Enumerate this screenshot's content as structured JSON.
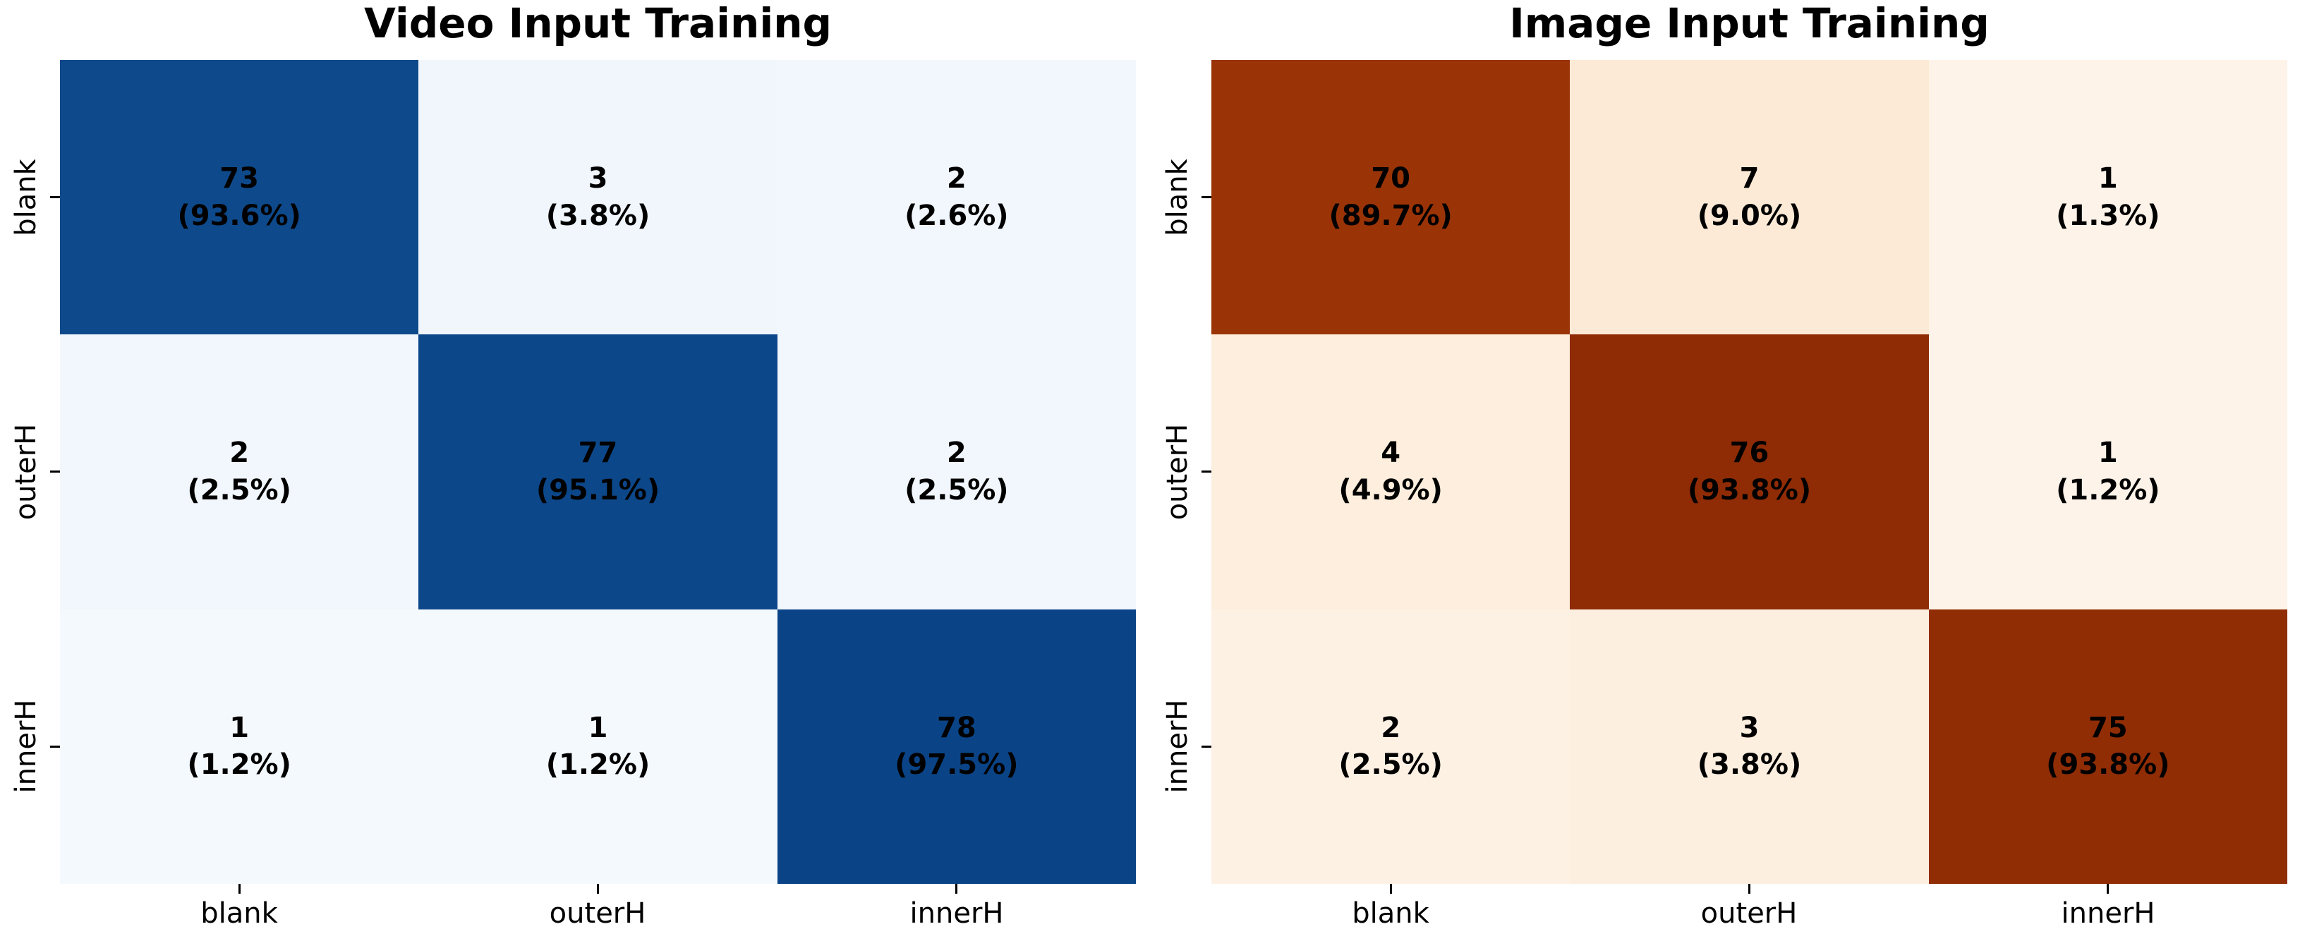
{
  "figure": {
    "background": "#ffffff",
    "text_color": "#000000"
  },
  "panels": [
    {
      "id": "video",
      "title": "Video Input Training",
      "colormap": "Blues",
      "accent_dark": "#0c4789",
      "accent_light": "#f2f7fd",
      "x_labels": [
        "blank",
        "outerH",
        "innerH"
      ],
      "y_labels": [
        "blank",
        "outerH",
        "innerH"
      ],
      "cells": [
        {
          "count": "73",
          "pct": "(93.6%)",
          "bg": "#0e4a8b"
        },
        {
          "count": "3",
          "pct": "(3.8%)",
          "bg": "#f0f6fc"
        },
        {
          "count": "2",
          "pct": "(2.6%)",
          "bg": "#f2f7fd"
        },
        {
          "count": "2",
          "pct": "(2.5%)",
          "bg": "#f2f7fd"
        },
        {
          "count": "77",
          "pct": "(95.1%)",
          "bg": "#0c4789"
        },
        {
          "count": "2",
          "pct": "(2.5%)",
          "bg": "#f2f7fd"
        },
        {
          "count": "1",
          "pct": "(1.2%)",
          "bg": "#f4f9fe"
        },
        {
          "count": "1",
          "pct": "(1.2%)",
          "bg": "#f4f9fe"
        },
        {
          "count": "78",
          "pct": "(97.5%)",
          "bg": "#0a4486"
        }
      ]
    },
    {
      "id": "image",
      "title": "Image Input Training",
      "colormap": "Oranges",
      "accent_dark": "#8f2c05",
      "accent_light": "#fdf1e4",
      "x_labels": [
        "blank",
        "outerH",
        "innerH"
      ],
      "y_labels": [
        "blank",
        "outerH",
        "innerH"
      ],
      "cells": [
        {
          "count": "70",
          "pct": "(89.7%)",
          "bg": "#9a3407"
        },
        {
          "count": "7",
          "pct": "(9.0%)",
          "bg": "#fcead6"
        },
        {
          "count": "1",
          "pct": "(1.3%)",
          "bg": "#fef3e9"
        },
        {
          "count": "4",
          "pct": "(4.9%)",
          "bg": "#fdeedd"
        },
        {
          "count": "76",
          "pct": "(93.8%)",
          "bg": "#8f2c05"
        },
        {
          "count": "1",
          "pct": "(1.2%)",
          "bg": "#fef3e9"
        },
        {
          "count": "2",
          "pct": "(2.5%)",
          "bg": "#fdf1e4"
        },
        {
          "count": "3",
          "pct": "(3.8%)",
          "bg": "#fdefe0"
        },
        {
          "count": "75",
          "pct": "(93.8%)",
          "bg": "#902d05"
        }
      ]
    }
  ],
  "chart_data": [
    {
      "type": "heatmap",
      "title": "Video Input Training",
      "x_tick_labels": [
        "blank",
        "outerH",
        "innerH"
      ],
      "y_tick_labels": [
        "blank",
        "outerH",
        "innerH"
      ],
      "values": [
        [
          73,
          3,
          2
        ],
        [
          2,
          77,
          2
        ],
        [
          1,
          1,
          78
        ]
      ],
      "percents": [
        [
          93.6,
          3.8,
          2.6
        ],
        [
          2.5,
          95.1,
          2.5
        ],
        [
          1.2,
          1.2,
          97.5
        ]
      ],
      "annotation_format": "count newline (percent%)",
      "colormap": "Blues",
      "grid": false,
      "legend": false
    },
    {
      "type": "heatmap",
      "title": "Image Input Training",
      "x_tick_labels": [
        "blank",
        "outerH",
        "innerH"
      ],
      "y_tick_labels": [
        "blank",
        "outerH",
        "innerH"
      ],
      "values": [
        [
          70,
          7,
          1
        ],
        [
          4,
          76,
          1
        ],
        [
          2,
          3,
          75
        ]
      ],
      "percents": [
        [
          89.7,
          9.0,
          1.3
        ],
        [
          4.9,
          93.8,
          1.2
        ],
        [
          2.5,
          3.8,
          93.8
        ]
      ],
      "annotation_format": "count newline (percent%)",
      "colormap": "Oranges",
      "grid": false,
      "legend": false
    }
  ]
}
